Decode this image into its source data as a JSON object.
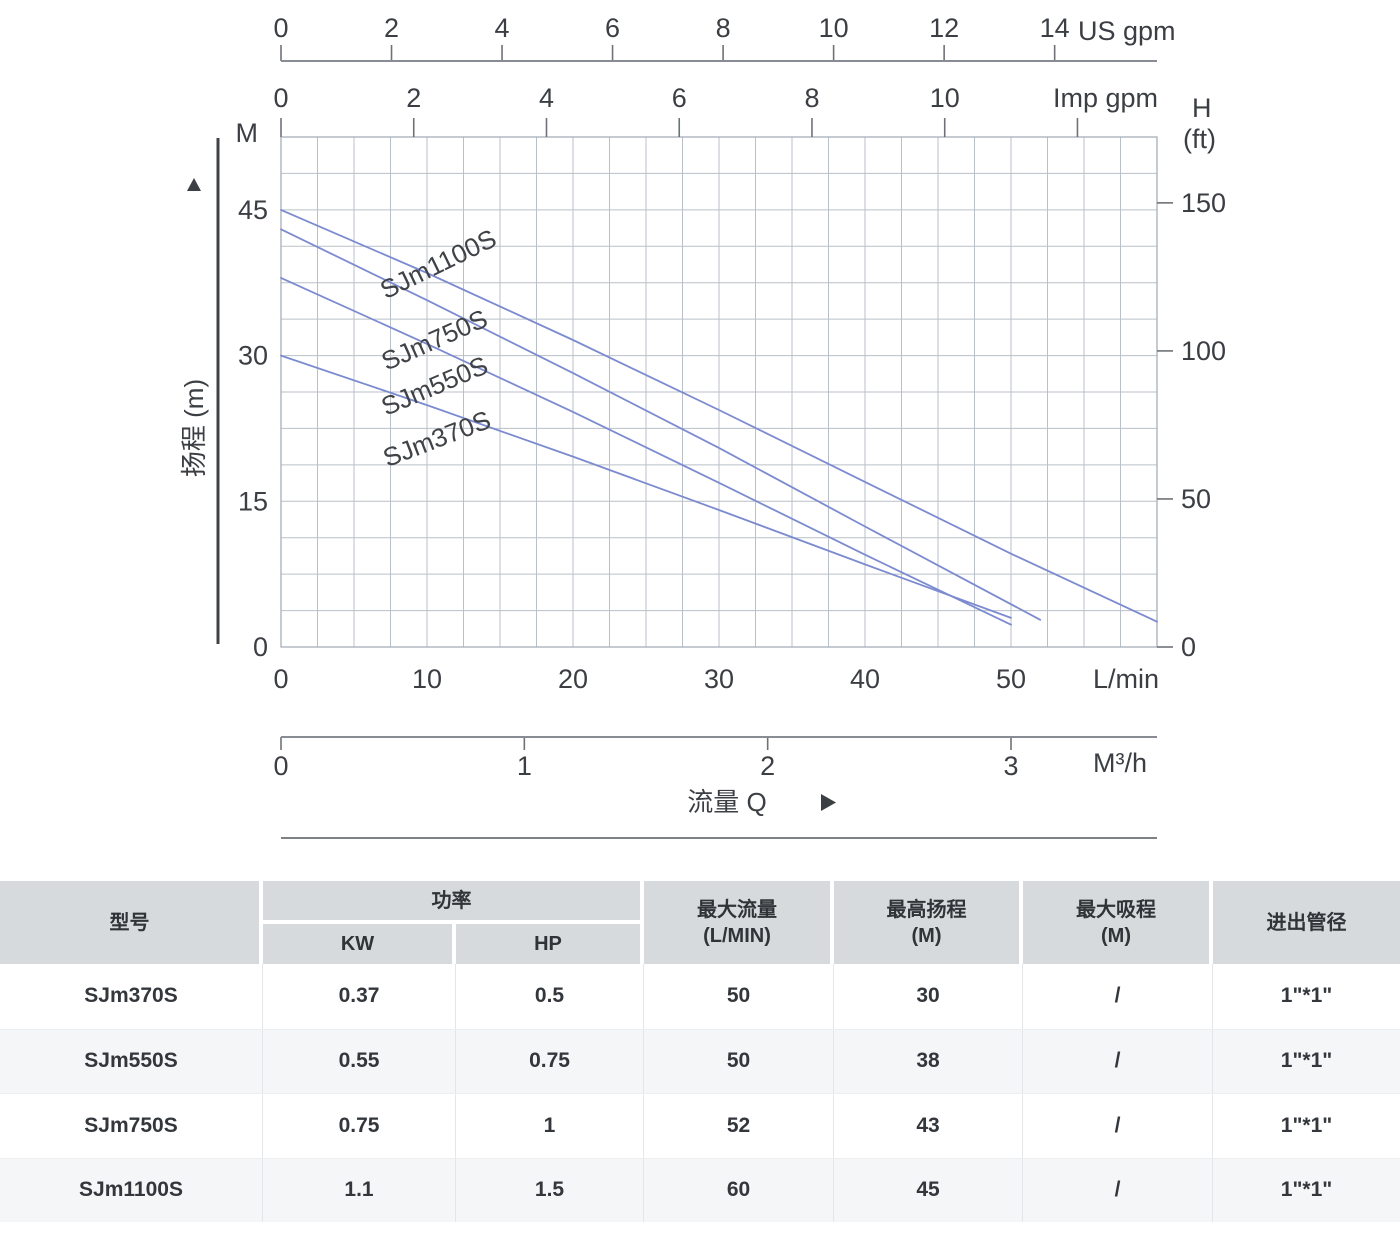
{
  "chart": {
    "us_gpm": {
      "unit": "US gpm",
      "ticks": [
        0,
        2,
        4,
        6,
        8,
        10,
        12,
        14
      ]
    },
    "imp_gpm": {
      "unit": "Imp gpm",
      "ticks": [
        0,
        2,
        4,
        6,
        8,
        10
      ],
      "unlabeled_ticks": [
        12
      ]
    },
    "right_axis": {
      "title": "H",
      "subtitle": "(ft)",
      "ticks": [
        0,
        50,
        100,
        150
      ]
    },
    "left_axis": {
      "unit": "M",
      "label": "扬程 (m)",
      "ticks": [
        0,
        15,
        30,
        45
      ]
    },
    "lmin": {
      "unit": "L/min",
      "ticks": [
        0,
        10,
        20,
        30,
        40,
        50
      ]
    },
    "m3h": {
      "unit": "M³/h",
      "ticks": [
        0,
        1,
        2,
        3
      ]
    },
    "flow_label": "流量 Q"
  },
  "chart_data": {
    "type": "line",
    "title": "",
    "xlabel": "流量 Q",
    "ylabel": "扬程 (m)",
    "x_unit_primary": "L/min",
    "x_units_secondary": [
      "US gpm",
      "Imp gpm",
      "M³/h"
    ],
    "y_unit_primary": "M",
    "y_unit_secondary": "ft",
    "xlim": [
      0,
      60
    ],
    "ylim": [
      0,
      52.5
    ],
    "grid": true,
    "line_color": "#7c8bd0",
    "series": [
      {
        "name": "SJm370S",
        "points": [
          [
            0,
            30
          ],
          [
            10,
            24.9
          ],
          [
            20,
            19.6
          ],
          [
            30,
            14.1
          ],
          [
            40,
            8.5
          ],
          [
            50,
            3.0
          ]
        ]
      },
      {
        "name": "SJm550S",
        "points": [
          [
            0,
            38
          ],
          [
            10,
            31.2
          ],
          [
            20,
            24.2
          ],
          [
            30,
            16.9
          ],
          [
            40,
            9.5
          ],
          [
            50,
            2.3
          ]
        ]
      },
      {
        "name": "SJm750S",
        "points": [
          [
            0,
            43
          ],
          [
            10,
            35.7
          ],
          [
            20,
            28.2
          ],
          [
            30,
            20.5
          ],
          [
            40,
            12.4
          ],
          [
            52,
            2.8
          ]
        ]
      },
      {
        "name": "SJm1100S",
        "points": [
          [
            0,
            45
          ],
          [
            10,
            38.5
          ],
          [
            20,
            31.6
          ],
          [
            30,
            24.4
          ],
          [
            40,
            17.0
          ],
          [
            50,
            9.6
          ],
          [
            60,
            2.6
          ]
        ]
      }
    ]
  },
  "table": {
    "headers": {
      "model": "型号",
      "power": "功率",
      "kw": "KW",
      "hp": "HP",
      "max_flow": "最大流量",
      "max_flow_unit": "(L/MIN)",
      "max_head": "最高扬程",
      "max_head_unit": "(M)",
      "max_suction": "最大吸程",
      "max_suction_unit": "(M)",
      "pipe": "进出管径"
    },
    "rows": [
      {
        "model": "SJm370S",
        "kw": "0.37",
        "hp": "0.5",
        "max_flow": "50",
        "max_head": "30",
        "max_suction": "/",
        "pipe": "1\"*1\""
      },
      {
        "model": "SJm550S",
        "kw": "0.55",
        "hp": "0.75",
        "max_flow": "50",
        "max_head": "38",
        "max_suction": "/",
        "pipe": "1\"*1\""
      },
      {
        "model": "SJm750S",
        "kw": "0.75",
        "hp": "1",
        "max_flow": "52",
        "max_head": "43",
        "max_suction": "/",
        "pipe": "1\"*1\""
      },
      {
        "model": "SJm1100S",
        "kw": "1.1",
        "hp": "1.5",
        "max_flow": "60",
        "max_head": "45",
        "max_suction": "/",
        "pipe": "1\"*1\""
      }
    ]
  }
}
